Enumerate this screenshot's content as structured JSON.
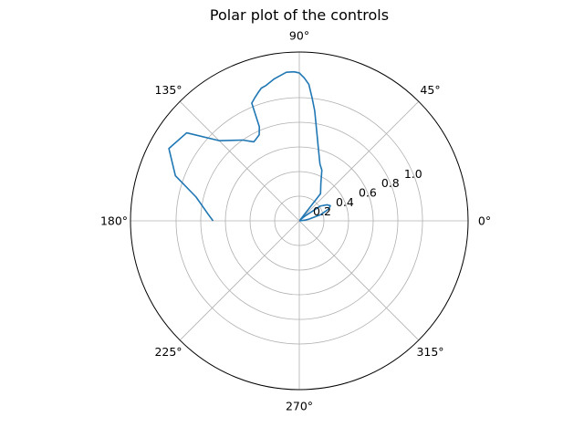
{
  "chart_data": {
    "type": "line",
    "projection": "polar",
    "title": "Polar plot of the controls",
    "theta_tick_labels": [
      "0°",
      "45°",
      "90°",
      "135°",
      "180°",
      "225°",
      "270°",
      "315°"
    ],
    "theta_ticks_deg": [
      0,
      45,
      90,
      135,
      180,
      225,
      270,
      315
    ],
    "r_ticks": [
      0.2,
      0.4,
      0.6,
      0.8,
      1.0
    ],
    "r_tick_labels": [
      "0.2",
      "0.4",
      "0.6",
      "0.8",
      "1.0"
    ],
    "rlim": [
      0,
      1.37
    ],
    "grid": true,
    "line_color": "#1f77b4",
    "series": [
      {
        "theta_deg": [
          0,
          7,
          10,
          16,
          22,
          26,
          30,
          35,
          40,
          45,
          52,
          60,
          66,
          70,
          76,
          78,
          82,
          84,
          86,
          88,
          90,
          92,
          95,
          100,
          104,
          106,
          108,
          110,
          112,
          113,
          115,
          118,
          120,
          125,
          135,
          142,
          151,
          160,
          167,
          171,
          176,
          180
        ],
        "r": [
          0.0,
          0.05,
          0.08,
          0.18,
          0.26,
          0.28,
          0.26,
          0.21,
          0.06,
          0.01,
          0.28,
          0.35,
          0.45,
          0.49,
          0.63,
          0.7,
          0.9,
          1.0,
          1.11,
          1.16,
          1.2,
          1.21,
          1.21,
          1.17,
          1.13,
          1.12,
          1.09,
          1.06,
          1.03,
          0.83,
          0.77,
          0.75,
          0.74,
          0.8,
          0.92,
          1.16,
          1.21,
          1.07,
          0.86,
          0.8,
          0.74,
          0.7
        ]
      }
    ]
  }
}
